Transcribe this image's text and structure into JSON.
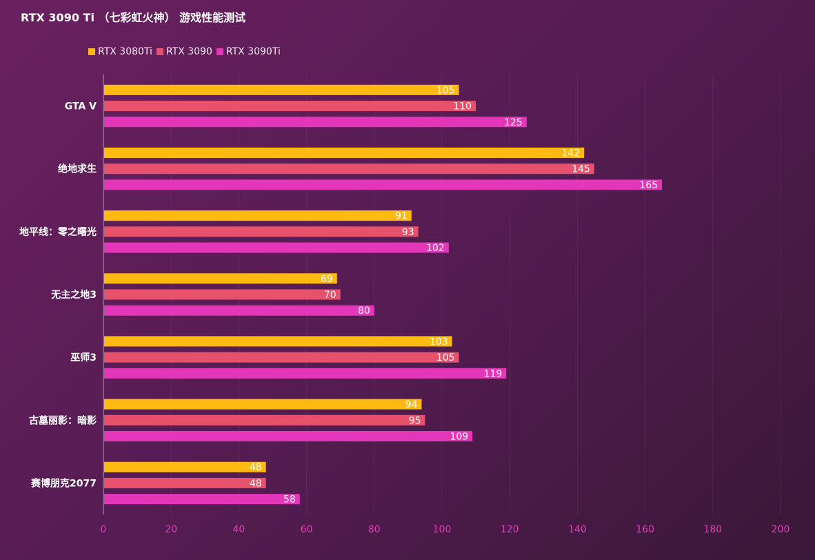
{
  "chart_data": {
    "type": "bar",
    "orientation": "horizontal",
    "title": "RTX 3090 Ti （七彩虹火神） 游戏性能测试",
    "categories": [
      "GTA V",
      "绝地求生",
      "地平线：零之曙光",
      "无主之地3",
      "巫师3",
      "古墓丽影：暗影",
      "赛博朋克2077"
    ],
    "series": [
      {
        "name": "RTX 3080Ti",
        "color": "#ffba12",
        "values": [
          105,
          142,
          91,
          69,
          103,
          94,
          48
        ]
      },
      {
        "name": "RTX 3090",
        "color": "#e8516b",
        "values": [
          110,
          145,
          93,
          70,
          105,
          95,
          48
        ]
      },
      {
        "name": "RTX 3090Ti",
        "color": "#e436b8",
        "values": [
          125,
          165,
          102,
          80,
          119,
          109,
          58
        ]
      }
    ],
    "xlim": [
      0,
      200
    ],
    "xticks": [
      "0",
      "20",
      "40",
      "60",
      "80",
      "100",
      "120",
      "140",
      "160",
      "180",
      "200"
    ],
    "legend_position": "top-left",
    "grid": true
  }
}
